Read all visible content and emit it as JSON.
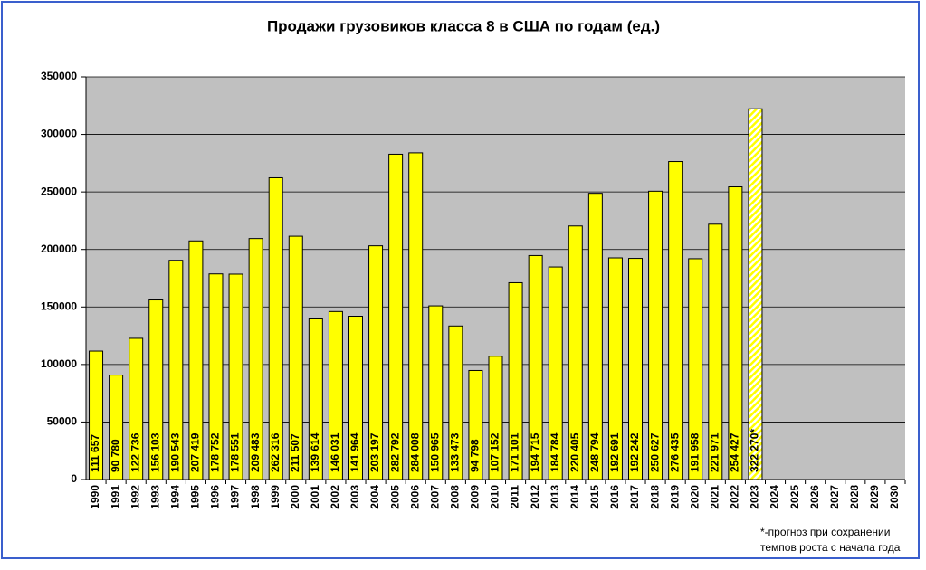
{
  "chart_data": {
    "type": "bar",
    "title": "Продажи грузовиков класса 8 в США по годам (ед.)",
    "categories": [
      "1990",
      "1991",
      "1992",
      "1993",
      "1994",
      "1995",
      "1996",
      "1997",
      "1998",
      "1999",
      "2000",
      "2001",
      "2002",
      "2003",
      "2004",
      "2005",
      "2006",
      "2007",
      "2008",
      "2009",
      "2010",
      "2011",
      "2012",
      "2013",
      "2014",
      "2015",
      "2016",
      "2017",
      "2018",
      "2019",
      "2020",
      "2021",
      "2022",
      "2023",
      "2024",
      "2025",
      "2026",
      "2027",
      "2028",
      "2029",
      "2030"
    ],
    "values": [
      111657,
      90780,
      122736,
      156103,
      190543,
      207419,
      178752,
      178551,
      209483,
      262316,
      211507,
      139614,
      146031,
      141964,
      203197,
      282792,
      284008,
      150965,
      133473,
      94798,
      107152,
      171101,
      194715,
      184784,
      220405,
      248794,
      192691,
      192242,
      250627,
      276435,
      191958,
      221971,
      254427,
      322270,
      null,
      null,
      null,
      null,
      null,
      null,
      null
    ],
    "value_labels": [
      "111 657",
      "90 780",
      "122 736",
      "156 103",
      "190 543",
      "207 419",
      "178 752",
      "178 551",
      "209 483",
      "262 316",
      "211 507",
      "139 614",
      "146 031",
      "141 964",
      "203 197",
      "282 792",
      "284 008",
      "150 965",
      "133 473",
      "94 798",
      "107 152",
      "171 101",
      "194 715",
      "184 784",
      "220 405",
      "248 794",
      "192 691",
      "192 242",
      "250 627",
      "276 435",
      "191 958",
      "221 971",
      "254 427",
      "322 270*",
      null,
      null,
      null,
      null,
      null,
      null,
      null
    ],
    "color": "#ffff00",
    "ylim": [
      0,
      350000
    ],
    "yticks": [
      0,
      50000,
      100000,
      150000,
      200000,
      250000,
      300000,
      350000
    ],
    "grid": true,
    "note": [
      "*-прогноз при сохранении",
      "темпов роста с начала года"
    ]
  }
}
